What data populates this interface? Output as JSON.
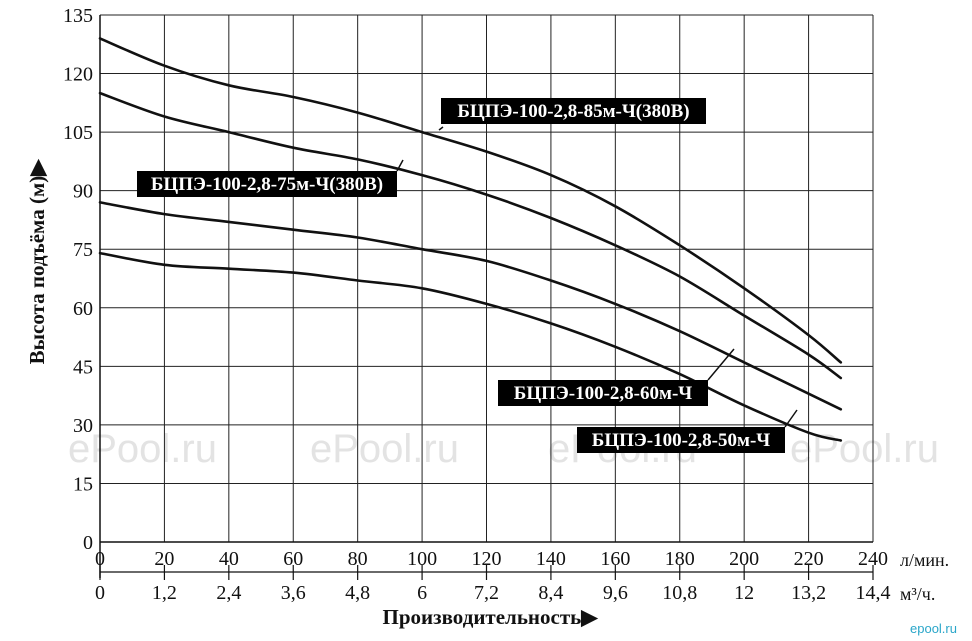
{
  "chart_data": {
    "type": "line",
    "ylabel": "Высота подъёма (м)▶",
    "xlabel": "Производительность▶",
    "x_unit_primary": "л/мин.",
    "x_unit_secondary": "м³/ч.",
    "ylim": [
      0,
      135
    ],
    "yticks": [
      "0",
      "15",
      "30",
      "45",
      "60",
      "75",
      "90",
      "105",
      "120",
      "135"
    ],
    "xlim": [
      0,
      240
    ],
    "xticks_primary": [
      "0",
      "20",
      "40",
      "60",
      "80",
      "100",
      "120",
      "140",
      "160",
      "180",
      "200",
      "220",
      "240"
    ],
    "xticks_secondary": [
      "0",
      "1,2",
      "2,4",
      "3,6",
      "4,8",
      "6",
      "7,2",
      "8,4",
      "9,6",
      "10,8",
      "12",
      "13,2",
      "14,4"
    ],
    "grid": true,
    "series": [
      {
        "name": "БЦПЭ-100-2,8-85м-Ч(380В)",
        "x": [
          0,
          20,
          40,
          60,
          80,
          100,
          120,
          140,
          160,
          180,
          200,
          220,
          230
        ],
        "y": [
          129,
          122,
          117,
          114,
          110,
          105,
          100,
          94,
          86,
          76,
          65,
          53,
          46
        ]
      },
      {
        "name": "БЦПЭ-100-2,8-75м-Ч(380В)",
        "x": [
          0,
          20,
          40,
          60,
          80,
          100,
          120,
          140,
          160,
          180,
          200,
          220,
          230
        ],
        "y": [
          115,
          109,
          105,
          101,
          98,
          94,
          89,
          83,
          76,
          68,
          58,
          48,
          42
        ]
      },
      {
        "name": "БЦПЭ-100-2,8-60м-Ч",
        "x": [
          0,
          20,
          40,
          60,
          80,
          100,
          120,
          140,
          160,
          180,
          200,
          220,
          230
        ],
        "y": [
          87,
          84,
          82,
          80,
          78,
          75,
          72,
          67,
          61,
          54,
          46,
          38,
          34
        ]
      },
      {
        "name": "БЦПЭ-100-2,8-50м-Ч",
        "x": [
          0,
          20,
          40,
          60,
          80,
          100,
          120,
          140,
          160,
          180,
          200,
          220,
          230
        ],
        "y": [
          74,
          71,
          70,
          69,
          67,
          65,
          61,
          56,
          50,
          43,
          35,
          28,
          26
        ]
      }
    ]
  },
  "watermark": "ePool.ru",
  "brand": "epool.ru"
}
